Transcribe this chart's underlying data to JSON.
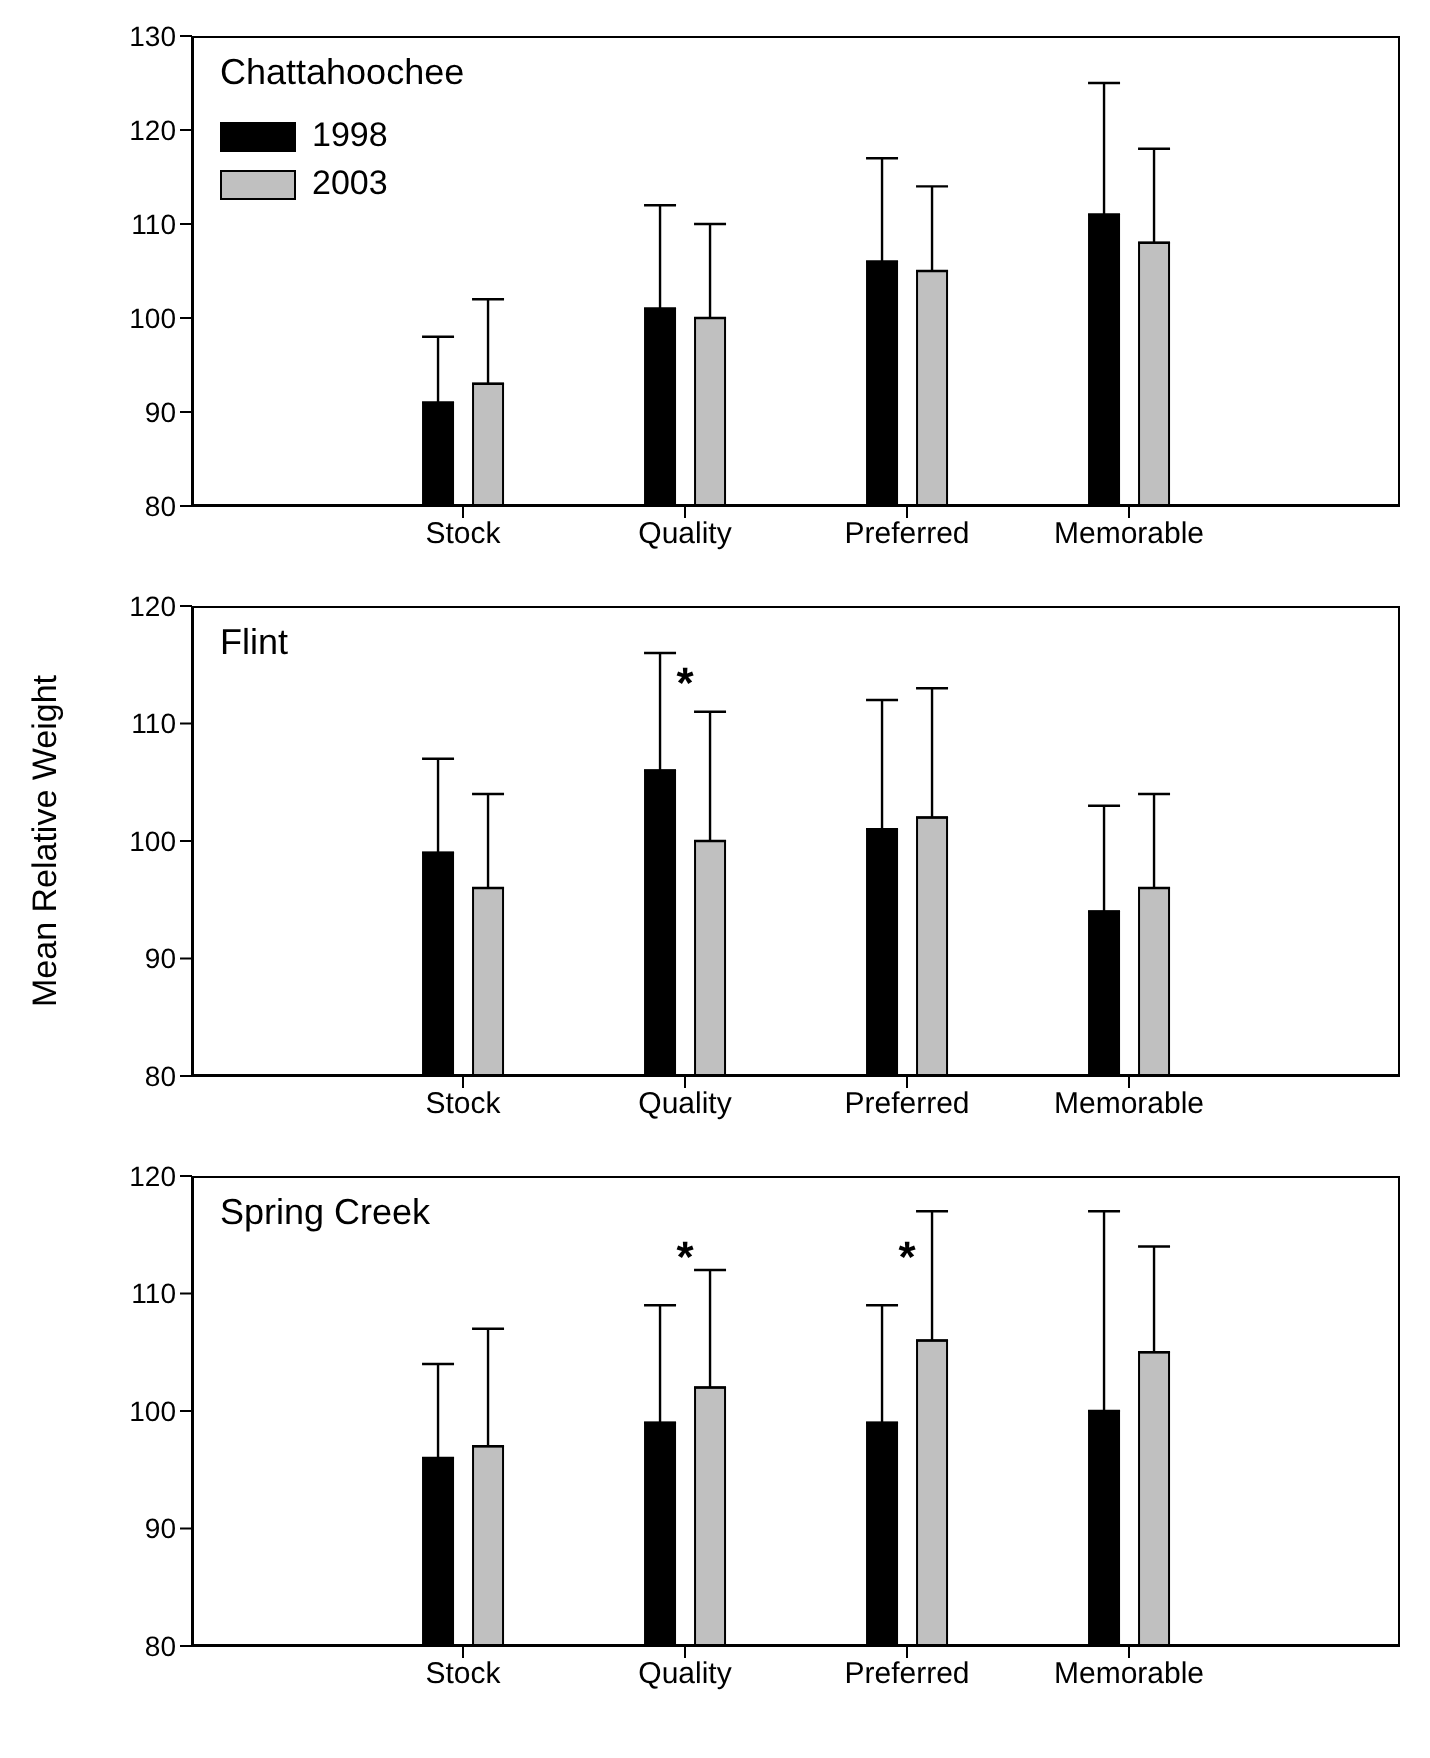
{
  "chart_data": [
    {
      "type": "bar",
      "title": "Chattahoochee",
      "categories": [
        "Stock",
        "Quality",
        "Preferred",
        "Memorable"
      ],
      "ylim": [
        80,
        130
      ],
      "yticks": [
        80,
        90,
        100,
        110,
        120,
        130
      ],
      "grid": false,
      "legend": "top left",
      "series": [
        {
          "name": "1998",
          "color": "#000000",
          "values": [
            91,
            101,
            106,
            111
          ],
          "errors": [
            [
              91,
              98
            ],
            [
              101,
              112
            ],
            [
              106,
              117
            ],
            [
              111,
              125
            ]
          ]
        },
        {
          "name": "2003",
          "color": "#c0c0c0",
          "values": [
            93,
            100,
            105,
            108
          ],
          "errors": [
            [
              93,
              102
            ],
            [
              100,
              110
            ],
            [
              105,
              114
            ],
            [
              108,
              118
            ]
          ]
        }
      ]
    },
    {
      "type": "bar",
      "title": "Flint",
      "ylabel": "Mean Relative Weight",
      "categories": [
        "Stock",
        "Quality",
        "Preferred",
        "Memorable"
      ],
      "ylim": [
        80,
        120
      ],
      "yticks": [
        80,
        90,
        100,
        110,
        120
      ],
      "grid": false,
      "annotations": [
        "*"
      ],
      "series": [
        {
          "color": "#000000",
          "values": [
            99,
            106,
            101,
            94
          ],
          "errors": [
            [
              99,
              107
            ],
            [
              106,
              116
            ],
            [
              101,
              112
            ],
            [
              94,
              103
            ]
          ]
        },
        {
          "color": "#c0c0c0",
          "values": [
            96,
            100,
            102,
            96
          ],
          "errors": [
            [
              96,
              104
            ],
            [
              100,
              111
            ],
            [
              102,
              113
            ],
            [
              96,
              104
            ]
          ]
        }
      ]
    },
    {
      "type": "bar",
      "title": "Spring Creek",
      "categories": [
        "Stock",
        "Quality",
        "Preferred",
        "Memorable"
      ],
      "ylim": [
        80,
        120
      ],
      "yticks": [
        80,
        90,
        100,
        110,
        120
      ],
      "grid": false,
      "annotations": [
        "*",
        "*"
      ],
      "series": [
        {
          "color": "#000000",
          "values": [
            96,
            99,
            99,
            100
          ],
          "errors": [
            [
              96,
              104
            ],
            [
              99,
              109
            ],
            [
              99,
              109
            ],
            [
              100,
              117
            ]
          ]
        },
        {
          "color": "#c0c0c0",
          "values": [
            97,
            102,
            106,
            105
          ],
          "errors": [
            [
              97,
              107
            ],
            [
              102,
              112
            ],
            [
              106,
              117
            ],
            [
              105,
              114
            ]
          ]
        }
      ]
    }
  ]
}
